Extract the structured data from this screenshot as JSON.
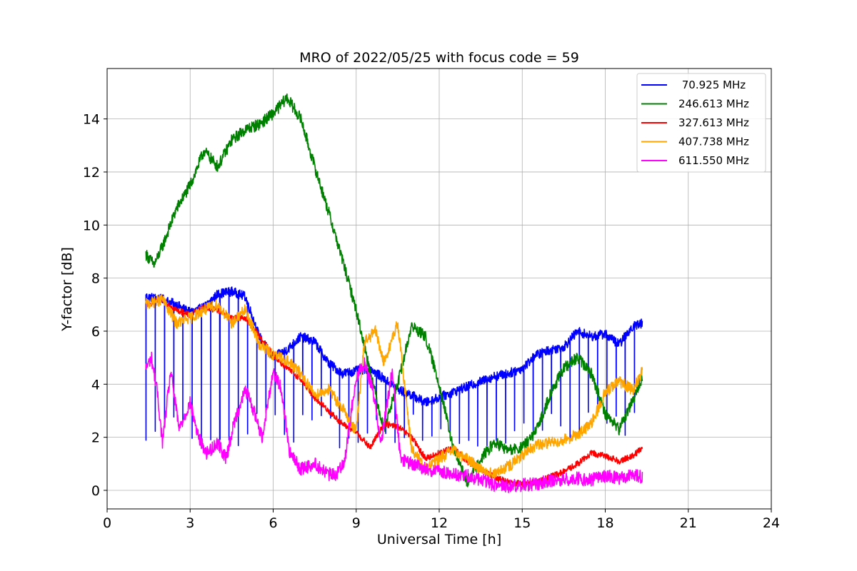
{
  "chart_data": {
    "type": "line",
    "title": "MRO of 2022/05/25 with focus code = 59",
    "xlabel": "Universal Time [h]",
    "ylabel": "Y-factor [dB]",
    "xlim": [
      0,
      24
    ],
    "ylim": [
      -0.7,
      15.9
    ],
    "xticks": [
      0,
      3,
      6,
      9,
      12,
      15,
      18,
      21,
      24
    ],
    "yticks": [
      0,
      2,
      4,
      6,
      8,
      10,
      12,
      14
    ],
    "grid": true,
    "legend_position": "top-right",
    "series": [
      {
        "name": " 70.925 MHz",
        "color": "#0000ff",
        "dropouts": "periodic sharp dips to about 1.6-3 dB roughly every 0.33 h",
        "x": [
          1.4,
          2.0,
          2.5,
          3.0,
          3.5,
          4.0,
          4.5,
          5.0,
          5.5,
          6.0,
          6.5,
          7.0,
          7.5,
          8.0,
          8.5,
          9.0,
          9.5,
          10.0,
          10.5,
          11.0,
          11.5,
          12.0,
          12.5,
          13.0,
          13.5,
          14.0,
          14.5,
          15.0,
          15.5,
          16.0,
          16.5,
          17.0,
          17.5,
          18.0,
          18.5,
          19.0,
          19.35
        ],
        "y": [
          7.3,
          7.2,
          7.0,
          6.7,
          6.9,
          7.4,
          7.5,
          7.3,
          5.8,
          5.0,
          5.3,
          5.8,
          5.6,
          4.8,
          4.4,
          4.5,
          4.6,
          4.2,
          3.8,
          3.6,
          3.3,
          3.5,
          3.7,
          3.9,
          4.1,
          4.3,
          4.4,
          4.6,
          5.1,
          5.3,
          5.4,
          6.0,
          5.8,
          5.9,
          5.5,
          6.2,
          6.3
        ]
      },
      {
        "name": "246.613 MHz",
        "color": "#008000",
        "x": [
          1.4,
          1.7,
          2.0,
          2.5,
          3.0,
          3.5,
          4.0,
          4.5,
          5.0,
          5.5,
          6.0,
          6.5,
          7.0,
          7.5,
          8.0,
          8.5,
          9.0,
          9.5,
          10.0,
          10.5,
          11.0,
          11.5,
          12.0,
          12.5,
          13.0,
          13.5,
          14.0,
          14.5,
          15.0,
          15.5,
          16.0,
          16.5,
          17.0,
          17.5,
          18.0,
          18.5,
          19.0,
          19.35
        ],
        "y": [
          8.9,
          8.5,
          9.2,
          10.6,
          11.5,
          12.8,
          12.2,
          13.2,
          13.6,
          13.8,
          14.2,
          14.8,
          14.0,
          12.2,
          10.5,
          8.7,
          6.8,
          4.5,
          2.3,
          4.0,
          6.2,
          5.8,
          4.0,
          1.6,
          0.3,
          1.2,
          1.8,
          1.5,
          1.6,
          2.2,
          3.6,
          4.6,
          5.0,
          4.4,
          2.9,
          2.3,
          3.4,
          4.3
        ]
      },
      {
        "name": "327.613 MHz",
        "color": "#ff0000",
        "x": [
          1.4,
          2.0,
          2.5,
          3.0,
          3.5,
          4.0,
          4.5,
          5.0,
          5.5,
          6.0,
          6.5,
          7.0,
          7.5,
          8.0,
          8.5,
          9.0,
          9.5,
          10.0,
          10.5,
          11.0,
          11.5,
          12.0,
          12.5,
          13.0,
          13.5,
          14.0,
          14.5,
          15.0,
          15.5,
          16.0,
          16.5,
          17.0,
          17.5,
          18.0,
          18.5,
          19.0,
          19.35
        ],
        "y": [
          7.0,
          7.2,
          6.8,
          6.6,
          6.9,
          6.8,
          6.5,
          6.5,
          5.8,
          5.1,
          4.6,
          4.2,
          3.5,
          3.0,
          2.5,
          2.2,
          1.6,
          2.5,
          2.4,
          2.0,
          1.2,
          1.4,
          1.6,
          1.1,
          0.8,
          0.5,
          0.3,
          0.25,
          0.3,
          0.5,
          0.7,
          1.0,
          1.4,
          1.3,
          1.1,
          1.3,
          1.6
        ]
      },
      {
        "name": "407.738 MHz",
        "color": "#ffa500",
        "x": [
          1.4,
          2.0,
          2.5,
          3.0,
          3.5,
          4.0,
          4.5,
          5.0,
          5.5,
          6.0,
          6.5,
          7.0,
          7.5,
          8.0,
          8.5,
          9.0,
          9.3,
          9.7,
          10.0,
          10.5,
          11.0,
          11.5,
          12.0,
          12.5,
          13.0,
          13.5,
          14.0,
          14.5,
          15.0,
          15.5,
          16.0,
          16.5,
          17.0,
          17.5,
          18.0,
          18.5,
          19.0,
          19.35
        ],
        "y": [
          7.0,
          7.2,
          6.3,
          6.5,
          6.8,
          7.0,
          6.3,
          6.8,
          5.5,
          5.1,
          4.9,
          4.4,
          3.6,
          3.8,
          3.1,
          2.2,
          5.6,
          6.0,
          4.8,
          6.3,
          1.6,
          0.8,
          1.2,
          1.5,
          1.2,
          0.8,
          0.6,
          0.9,
          1.3,
          1.7,
          1.8,
          1.9,
          2.1,
          2.5,
          3.7,
          4.1,
          3.8,
          4.5
        ]
      },
      {
        "name": "611.550 MHz",
        "color": "#ff00ff",
        "x": [
          1.4,
          1.6,
          1.8,
          2.0,
          2.3,
          2.6,
          3.0,
          3.3,
          3.6,
          4.0,
          4.3,
          4.6,
          5.0,
          5.3,
          5.6,
          6.0,
          6.3,
          6.6,
          7.0,
          7.5,
          8.0,
          8.3,
          8.6,
          9.0,
          9.3,
          9.6,
          9.9,
          10.3,
          10.6,
          11.0,
          11.5,
          12.0,
          12.5,
          13.0,
          13.5,
          14.0,
          14.5,
          15.0,
          15.5,
          16.0,
          16.5,
          17.0,
          17.5,
          18.0,
          18.5,
          19.0,
          19.35
        ],
        "y": [
          4.6,
          5.0,
          3.8,
          1.8,
          4.5,
          2.3,
          3.3,
          2.0,
          1.4,
          1.8,
          1.2,
          2.6,
          3.8,
          3.0,
          2.0,
          4.5,
          3.8,
          1.4,
          0.8,
          1.0,
          0.6,
          0.6,
          1.2,
          4.3,
          4.8,
          3.8,
          1.8,
          4.5,
          1.2,
          1.0,
          0.8,
          0.7,
          0.6,
          0.55,
          0.4,
          0.2,
          0.15,
          0.2,
          0.25,
          0.35,
          0.4,
          0.45,
          0.4,
          0.55,
          0.45,
          0.55,
          0.5
        ]
      }
    ]
  }
}
